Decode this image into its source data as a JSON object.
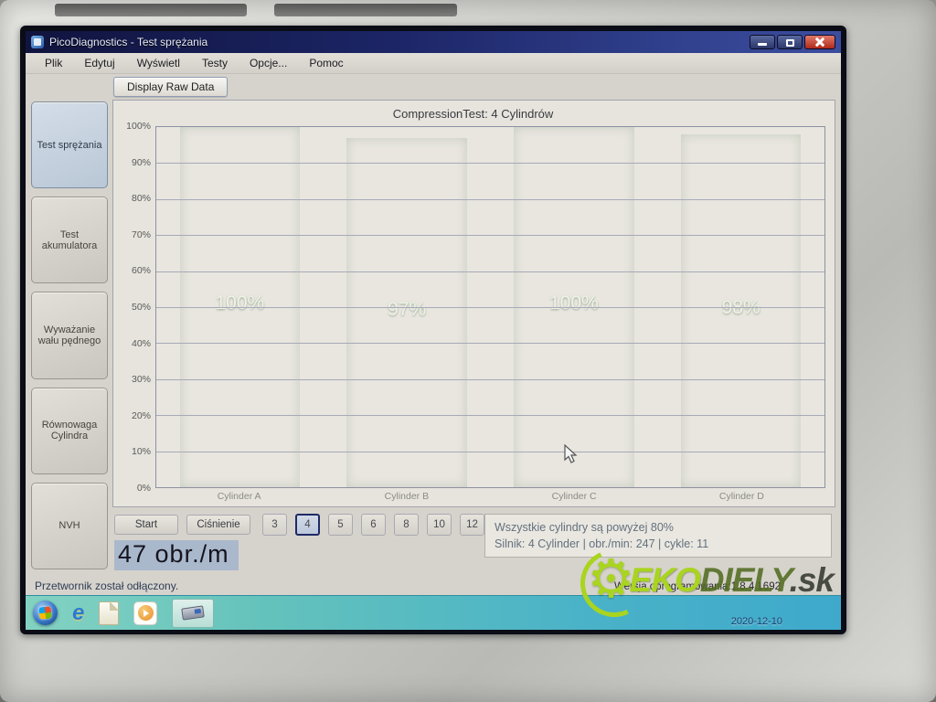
{
  "window": {
    "title": "PicoDiagnostics - Test sprężania",
    "menu": [
      "Plik",
      "Edytuj",
      "Wyświetl",
      "Testy",
      "Opcje...",
      "Pomoc"
    ],
    "toolbar": {
      "display_raw_data_label": "Display Raw Data"
    },
    "controls_icons": [
      "minimize-icon",
      "maximize-icon",
      "close-icon"
    ]
  },
  "sidebar": {
    "items": [
      {
        "label": "Test sprężania",
        "selected": true
      },
      {
        "label": "Test akumulatora",
        "selected": false
      },
      {
        "label": "Wyważanie wału pędnego",
        "selected": false
      },
      {
        "label": "Równowaga Cylindra",
        "selected": false
      },
      {
        "label": "NVH",
        "selected": false
      }
    ]
  },
  "chart_data": {
    "type": "bar",
    "title": "CompressionTest: 4 Cylindrów",
    "categories": [
      "Cylinder A",
      "Cylinder B",
      "Cylinder C",
      "Cylinder D"
    ],
    "values": [
      100,
      97,
      100,
      98
    ],
    "value_labels": [
      "100%",
      "97%",
      "100%",
      "98%"
    ],
    "xlabel": "",
    "ylabel": "",
    "ylim": [
      0,
      100
    ],
    "yticks": [
      "100%",
      "90%",
      "80%",
      "70%",
      "60%",
      "50%",
      "40%",
      "30%",
      "20%",
      "10%",
      "0%"
    ],
    "grid": true,
    "legend": false,
    "bar_color": "#3f9a38"
  },
  "controls": {
    "start_label": "Start",
    "pressure_label": "Ciśnienie",
    "cylinder_count_options": [
      "3",
      "4",
      "5",
      "6",
      "8",
      "10",
      "12"
    ],
    "selected_cylinder_count": "4",
    "rpm_display": "47 obr./m"
  },
  "info_panel": {
    "line1": "Wszystkie cylindry są powyżej 80%",
    "line2": "Silnik: 4 Cylinder | obr./min: 247 | cykle: 11"
  },
  "status_bar": {
    "text": "Przetwornik został odłączony."
  },
  "footer": {
    "version": "Wersja oprogramowania:1.8.4.1692"
  },
  "taskbar": {
    "date": "2020-12-10",
    "icons": [
      "start-orb",
      "internet-explorer",
      "documents-folder",
      "media-player",
      "picodiagnostics-app"
    ]
  },
  "watermark": {
    "eko": "EKO",
    "diely": "DIELY",
    "sk": ".sk",
    "gear_glyph": "⚙"
  },
  "colors": {
    "titlebar_blue": "#1c2566",
    "bar_green": "#3f9a38",
    "taskbar_teal": "#49b2c8",
    "watermark_lime": "#a9d41f",
    "selection_highlight": "#aab8cc"
  }
}
